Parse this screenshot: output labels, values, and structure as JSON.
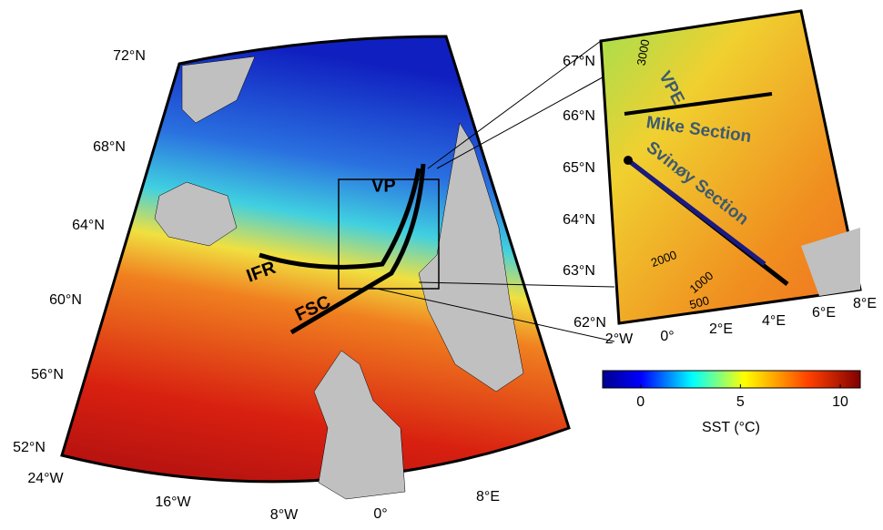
{
  "main_map": {
    "lat_labels": [
      "72°N",
      "68°N",
      "64°N",
      "60°N",
      "56°N",
      "52°N"
    ],
    "lon_labels": [
      "24°W",
      "16°W",
      "8°W",
      "0°",
      "8°E"
    ],
    "region_labels": [
      "VP",
      "IFR",
      "FSC"
    ]
  },
  "inset_map": {
    "lat_labels": [
      "67°N",
      "66°N",
      "65°N",
      "64°N",
      "63°N",
      "62°N"
    ],
    "lon_labels": [
      "2°W",
      "0°",
      "2°E",
      "4°E",
      "6°E",
      "8°E"
    ],
    "section_labels": [
      "VPE",
      "Mike Section",
      "Svinøy Section"
    ],
    "contour_labels": [
      "3000",
      "2000",
      "1000",
      "500"
    ]
  },
  "colorbar": {
    "label": "SST (°C)",
    "range": [
      -1.9,
      11
    ],
    "ticks": [
      0,
      5,
      10
    ]
  }
}
